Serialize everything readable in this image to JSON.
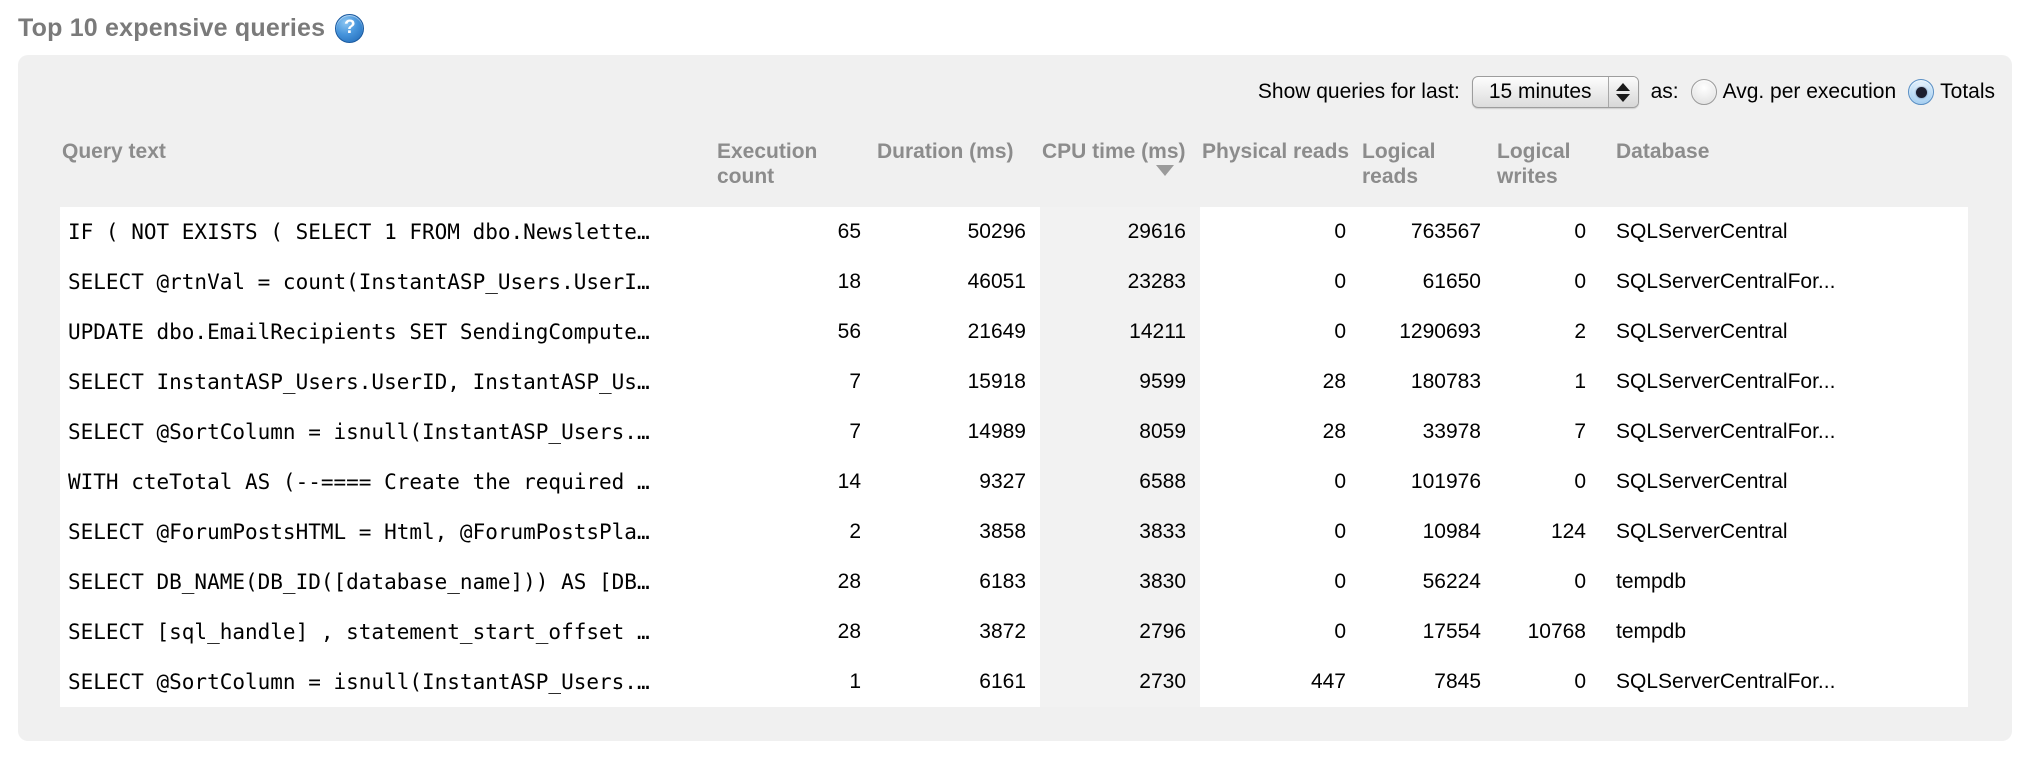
{
  "page": {
    "title": "Top 10 expensive queries",
    "help_glyph": "?"
  },
  "controls": {
    "show_label": "Show queries for last:",
    "period_value": "15 minutes",
    "as_label": "as:",
    "radios": [
      {
        "label": "Avg. per execution",
        "selected": false
      },
      {
        "label": "Totals",
        "selected": true
      }
    ]
  },
  "table": {
    "columns": [
      "Query text",
      "Execution count",
      "Duration (ms)",
      "CPU time (ms)",
      "Physical reads",
      "Logical reads",
      "Logical writes",
      "Database"
    ],
    "sorted_column": "CPU time (ms)",
    "sort_direction": "descending",
    "rows": [
      {
        "query": "IF ( NOT EXISTS ( SELECT 1 FROM dbo.Newslette…",
        "execution_count": 65,
        "duration_ms": 50296,
        "cpu_time_ms": 29616,
        "physical_reads": 0,
        "logical_reads": 763567,
        "logical_writes": 0,
        "database": "SQLServerCentral"
      },
      {
        "query": "SELECT @rtnVal = count(InstantASP_Users.UserI…",
        "execution_count": 18,
        "duration_ms": 46051,
        "cpu_time_ms": 23283,
        "physical_reads": 0,
        "logical_reads": 61650,
        "logical_writes": 0,
        "database": "SQLServerCentralFor..."
      },
      {
        "query": "UPDATE dbo.EmailRecipients SET SendingCompute…",
        "execution_count": 56,
        "duration_ms": 21649,
        "cpu_time_ms": 14211,
        "physical_reads": 0,
        "logical_reads": 1290693,
        "logical_writes": 2,
        "database": "SQLServerCentral"
      },
      {
        "query": "SELECT InstantASP_Users.UserID, InstantASP_Us…",
        "execution_count": 7,
        "duration_ms": 15918,
        "cpu_time_ms": 9599,
        "physical_reads": 28,
        "logical_reads": 180783,
        "logical_writes": 1,
        "database": "SQLServerCentralFor..."
      },
      {
        "query": "SELECT @SortColumn = isnull(InstantASP_Users.…",
        "execution_count": 7,
        "duration_ms": 14989,
        "cpu_time_ms": 8059,
        "physical_reads": 28,
        "logical_reads": 33978,
        "logical_writes": 7,
        "database": "SQLServerCentralFor..."
      },
      {
        "query": "WITH cteTotal AS (--==== Create the required …",
        "execution_count": 14,
        "duration_ms": 9327,
        "cpu_time_ms": 6588,
        "physical_reads": 0,
        "logical_reads": 101976,
        "logical_writes": 0,
        "database": "SQLServerCentral"
      },
      {
        "query": "SELECT @ForumPostsHTML = Html, @ForumPostsPla…",
        "execution_count": 2,
        "duration_ms": 3858,
        "cpu_time_ms": 3833,
        "physical_reads": 0,
        "logical_reads": 10984,
        "logical_writes": 124,
        "database": "SQLServerCentral"
      },
      {
        "query": "SELECT DB_NAME(DB_ID([database_name])) AS [DB…",
        "execution_count": 28,
        "duration_ms": 6183,
        "cpu_time_ms": 3830,
        "physical_reads": 0,
        "logical_reads": 56224,
        "logical_writes": 0,
        "database": "tempdb"
      },
      {
        "query": "SELECT [sql_handle] , statement_start_offset …",
        "execution_count": 28,
        "duration_ms": 3872,
        "cpu_time_ms": 2796,
        "physical_reads": 0,
        "logical_reads": 17554,
        "logical_writes": 10768,
        "database": "tempdb"
      },
      {
        "query": "SELECT @SortColumn = isnull(InstantASP_Users.…",
        "execution_count": 1,
        "duration_ms": 6161,
        "cpu_time_ms": 2730,
        "physical_reads": 447,
        "logical_reads": 7845,
        "logical_writes": 0,
        "database": "SQLServerCentralFor..."
      }
    ]
  }
}
